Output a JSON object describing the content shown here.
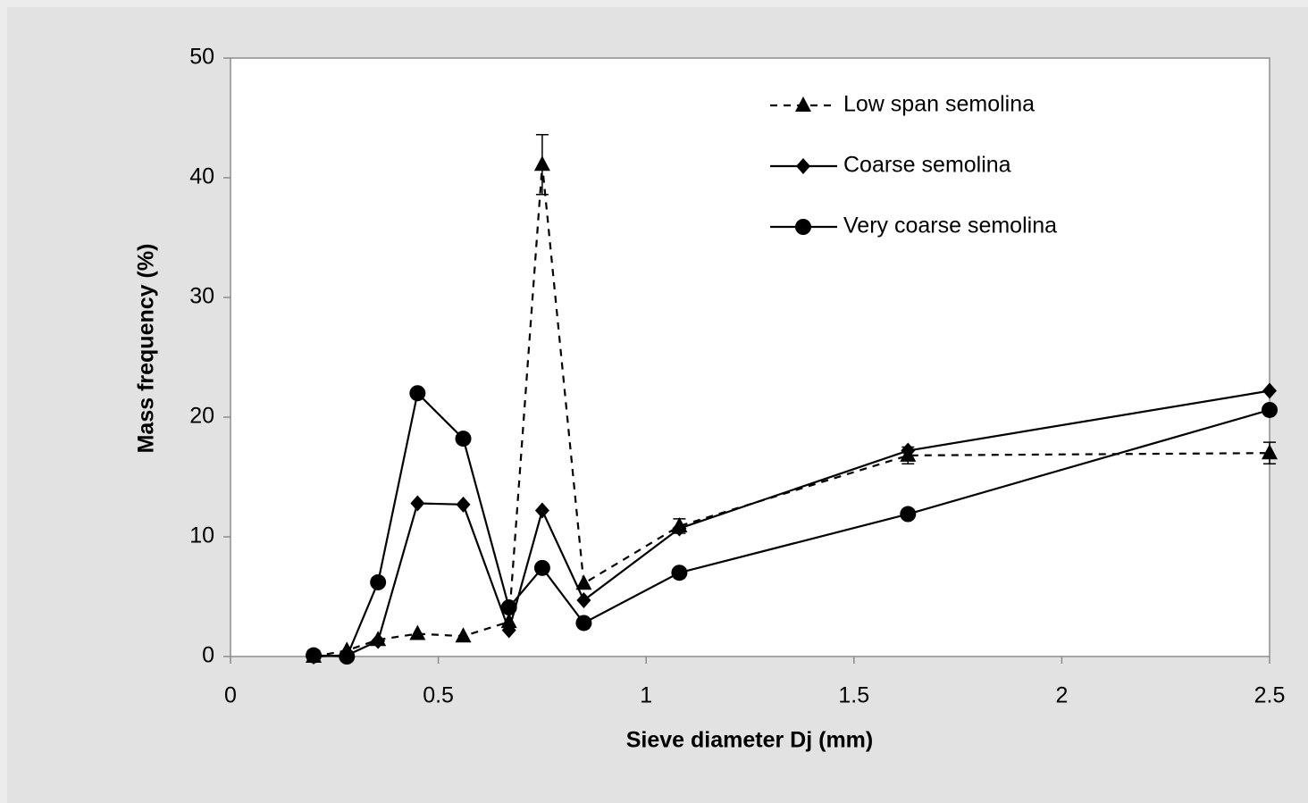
{
  "chart_data": {
    "type": "line",
    "x_label": "Sieve diameter Dj (mm)",
    "y_label": "Mass frequency (%)",
    "x": [
      0.2,
      0.28,
      0.355,
      0.45,
      0.56,
      0.67,
      0.75,
      0.85,
      1.08,
      1.63,
      2.5
    ],
    "series": [
      {
        "name": "Low span semolina",
        "color": "#000000",
        "marker": "triangle",
        "dash": true,
        "values": [
          0,
          0.5,
          1.4,
          1.9,
          1.7,
          2.9,
          41.1,
          6.1,
          10.9,
          16.8,
          17.0
        ],
        "errors": [
          null,
          null,
          null,
          null,
          null,
          null,
          2.5,
          null,
          0.6,
          0.7,
          0.9
        ]
      },
      {
        "name": "Coarse semolina",
        "color": "#000000",
        "marker": "diamond",
        "dash": false,
        "values": [
          0,
          0.1,
          1.3,
          12.8,
          12.7,
          2.2,
          12.2,
          4.7,
          10.7,
          17.2,
          22.2
        ]
      },
      {
        "name": "Very coarse semolina",
        "color": "#000000",
        "marker": "circle",
        "dash": false,
        "values": [
          0.1,
          0,
          6.2,
          22.0,
          18.2,
          4.1,
          7.4,
          2.8,
          7.0,
          11.9,
          20.6
        ]
      }
    ],
    "xlim": [
      0,
      2.5
    ],
    "xticks": [
      0,
      0.5,
      1,
      1.5,
      2,
      2.5
    ],
    "ylim": [
      0,
      50
    ],
    "yticks": [
      0,
      10,
      20,
      30,
      40,
      50
    ],
    "legend": "upper right",
    "grid": false
  }
}
